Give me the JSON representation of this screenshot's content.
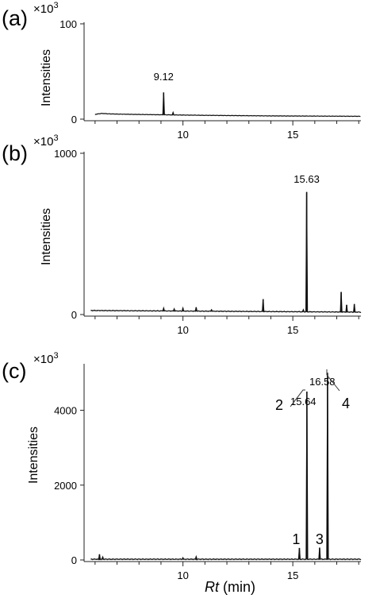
{
  "chart_data": [
    {
      "type": "line",
      "panel_label": "(a)",
      "y_multiplier": "×10",
      "y_multiplier_exp": "3",
      "ylabel": "Intensities",
      "ylim": [
        0,
        100
      ],
      "xlim": [
        5.5,
        18.1
      ],
      "y_ticks": [
        0,
        100
      ],
      "x_ticks": [
        10,
        15
      ],
      "baseline": [
        [
          6.0,
          5
        ],
        [
          6.3,
          6
        ],
        [
          6.6,
          5.6
        ],
        [
          7.0,
          5.3
        ],
        [
          8.0,
          4.9
        ],
        [
          9.0,
          4.6
        ],
        [
          10,
          4.3
        ],
        [
          11,
          4.0
        ],
        [
          12,
          3.8
        ],
        [
          13,
          3.6
        ],
        [
          14,
          3.4
        ],
        [
          15,
          3.3
        ],
        [
          16,
          3.2
        ],
        [
          17,
          3.1
        ],
        [
          18.1,
          3.0
        ]
      ],
      "peaks": [
        {
          "x": 9.12,
          "y": 28,
          "label": "9.12"
        },
        {
          "x": 9.55,
          "y": 7
        }
      ]
    },
    {
      "type": "line",
      "panel_label": "(b)",
      "y_multiplier": "×10",
      "y_multiplier_exp": "3",
      "ylabel": "Intensities",
      "ylim": [
        0,
        1000
      ],
      "xlim": [
        5.5,
        18.1
      ],
      "y_ticks": [
        0,
        1000
      ],
      "x_ticks": [
        10,
        15
      ],
      "baseline": [
        [
          5.8,
          25
        ],
        [
          18.1,
          15
        ]
      ],
      "peaks": [
        {
          "x": 9.12,
          "y": 40
        },
        {
          "x": 9.6,
          "y": 35
        },
        {
          "x": 10.0,
          "y": 40
        },
        {
          "x": 10.6,
          "y": 45
        },
        {
          "x": 11.3,
          "y": 30
        },
        {
          "x": 13.65,
          "y": 95
        },
        {
          "x": 15.48,
          "y": 30
        },
        {
          "x": 15.63,
          "y": 760,
          "label": "15.63"
        },
        {
          "x": 17.2,
          "y": 140
        },
        {
          "x": 17.45,
          "y": 60
        },
        {
          "x": 17.8,
          "y": 65
        }
      ]
    },
    {
      "type": "line",
      "panel_label": "(c)",
      "y_multiplier": "×10",
      "y_multiplier_exp": "3",
      "ylabel": "Intensities",
      "xlabel_italic": "Rt",
      "xlabel_rest": " (min)",
      "ylim": [
        0,
        5200
      ],
      "xlim": [
        5.5,
        18.1
      ],
      "y_ticks": [
        0,
        2000,
        4000
      ],
      "x_ticks": [
        10,
        15
      ],
      "baseline": [
        [
          5.8,
          20
        ],
        [
          18.1,
          20
        ]
      ],
      "peaks": [
        {
          "x": 6.2,
          "y": 150
        },
        {
          "x": 6.35,
          "y": 80
        },
        {
          "x": 10.0,
          "y": 60
        },
        {
          "x": 10.6,
          "y": 90
        },
        {
          "x": 15.3,
          "y": 320,
          "number": "1"
        },
        {
          "x": 15.64,
          "y": 4500,
          "number": "2",
          "label": "15.64"
        },
        {
          "x": 16.22,
          "y": 330,
          "number": "3"
        },
        {
          "x": 16.58,
          "y": 5000,
          "number": "4",
          "label": "16.58"
        }
      ]
    }
  ]
}
